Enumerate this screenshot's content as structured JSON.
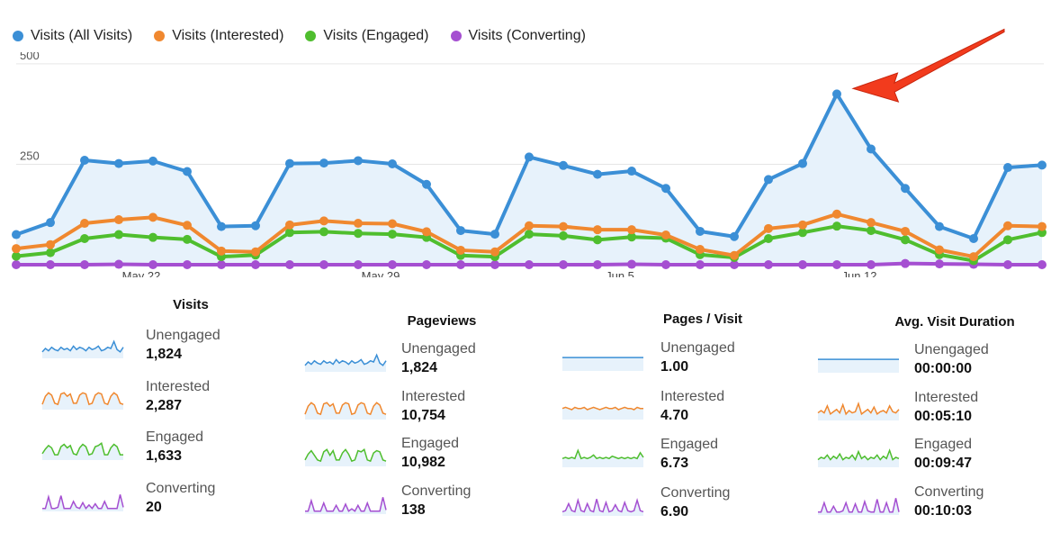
{
  "legend": [
    {
      "label": "Visits (All Visits)",
      "color": "#3b8fd6"
    },
    {
      "label": "Visits (Interested)",
      "color": "#f0882f"
    },
    {
      "label": "Visits (Engaged)",
      "color": "#4fbe2e"
    },
    {
      "label": "Visits (Converting)",
      "color": "#a54fd1"
    }
  ],
  "chart_data": {
    "type": "line",
    "x_tick_labels": [
      "May 22",
      "May 29",
      "Jun 5",
      "Jun 12"
    ],
    "y_tick_labels": [
      "500",
      "250"
    ],
    "ylim": [
      0,
      520
    ],
    "series": [
      {
        "name": "Visits (All Visits)",
        "color": "#3b8fd6",
        "values": [
          75,
          105,
          260,
          252,
          258,
          232,
          95,
          97,
          252,
          253,
          259,
          251,
          200,
          85,
          76,
          268,
          247,
          225,
          233,
          190,
          83,
          70,
          212,
          252,
          425,
          288,
          190,
          95,
          65,
          242,
          248
        ]
      },
      {
        "name": "Visits (Interested)",
        "color": "#f0882f",
        "values": [
          40,
          50,
          103,
          112,
          118,
          98,
          34,
          32,
          99,
          109,
          103,
          102,
          82,
          36,
          32,
          97,
          95,
          87,
          87,
          74,
          38,
          23,
          90,
          99,
          126,
          105,
          83,
          37,
          20,
          97,
          95
        ]
      },
      {
        "name": "Visits (Engaged)",
        "color": "#4fbe2e",
        "values": [
          21,
          30,
          65,
          75,
          68,
          63,
          20,
          24,
          80,
          82,
          78,
          76,
          68,
          23,
          20,
          76,
          72,
          62,
          69,
          66,
          25,
          18,
          65,
          80,
          96,
          85,
          62,
          25,
          10,
          62,
          80
        ]
      },
      {
        "name": "Visits (Converting)",
        "color": "#a54fd1",
        "values": [
          0,
          0,
          0,
          1,
          0,
          0,
          0,
          0,
          0,
          0,
          0,
          0,
          0,
          0,
          0,
          0,
          0,
          0,
          1,
          0,
          0,
          0,
          0,
          0,
          0,
          0,
          3,
          2,
          1,
          0,
          0
        ]
      }
    ]
  },
  "metrics": [
    {
      "title": "Visits",
      "spark_fill": false,
      "rows": [
        {
          "label": "Unengaged",
          "value": "1,824",
          "color": "#3b8fd6",
          "spark": [
            4,
            7,
            5,
            8,
            6,
            5,
            8,
            6,
            7,
            5,
            9,
            6,
            8,
            7,
            5,
            8,
            6,
            7,
            9,
            5,
            6,
            8,
            7,
            13,
            6,
            4,
            8
          ]
        },
        {
          "label": "Interested",
          "value": "2,287",
          "color": "#f0882f",
          "spark": [
            3,
            10,
            13,
            11,
            4,
            3,
            12,
            13,
            10,
            12,
            4,
            4,
            11,
            13,
            12,
            3,
            4,
            11,
            13,
            12,
            4,
            3,
            10,
            13,
            11,
            4,
            3
          ]
        },
        {
          "label": "Engaged",
          "value": "1,633",
          "color": "#4fbe2e",
          "spark": [
            4,
            8,
            11,
            9,
            3,
            3,
            10,
            12,
            9,
            11,
            4,
            3,
            9,
            12,
            10,
            3,
            4,
            10,
            11,
            13,
            3,
            3,
            9,
            12,
            10,
            3,
            3
          ]
        },
        {
          "label": "Converting",
          "value": "20",
          "color": "#a54fd1",
          "spark": [
            1,
            1,
            11,
            1,
            1,
            2,
            12,
            1,
            1,
            1,
            7,
            2,
            1,
            6,
            1,
            4,
            1,
            5,
            1,
            1,
            7,
            1,
            1,
            1,
            1,
            13,
            2
          ]
        }
      ]
    },
    {
      "title": "Pageviews",
      "spark_fill": false,
      "rows": [
        {
          "label": "Unengaged",
          "value": "1,824",
          "color": "#3b8fd6",
          "spark": [
            4,
            7,
            5,
            8,
            6,
            5,
            8,
            6,
            7,
            5,
            9,
            6,
            8,
            7,
            5,
            8,
            6,
            7,
            9,
            5,
            6,
            8,
            7,
            13,
            6,
            4,
            8
          ]
        },
        {
          "label": "Interested",
          "value": "10,754",
          "color": "#f0882f",
          "spark": [
            3,
            10,
            13,
            11,
            4,
            3,
            12,
            13,
            10,
            12,
            4,
            4,
            11,
            13,
            12,
            3,
            4,
            11,
            13,
            12,
            4,
            3,
            10,
            13,
            11,
            4,
            3
          ]
        },
        {
          "label": "Engaged",
          "value": "10,982",
          "color": "#4fbe2e",
          "spark": [
            4,
            9,
            12,
            8,
            4,
            3,
            11,
            13,
            8,
            12,
            4,
            4,
            10,
            13,
            9,
            3,
            4,
            12,
            11,
            13,
            4,
            3,
            10,
            12,
            11,
            4,
            3
          ]
        },
        {
          "label": "Converting",
          "value": "138",
          "color": "#a54fd1",
          "spark": [
            1,
            1,
            10,
            1,
            1,
            1,
            8,
            1,
            1,
            1,
            6,
            1,
            1,
            7,
            1,
            3,
            1,
            6,
            1,
            1,
            8,
            1,
            1,
            1,
            1,
            13,
            2
          ]
        }
      ]
    },
    {
      "title": "Pages / Visit",
      "spark_fill": true,
      "rows": [
        {
          "label": "Unengaged",
          "value": "1.00",
          "color": "#3b8fd6",
          "spark": [
            10,
            10,
            10,
            10,
            10,
            10,
            10,
            10,
            10,
            10,
            10,
            10,
            10,
            10,
            10,
            10,
            10,
            10,
            10,
            10,
            10,
            10,
            10,
            10,
            10,
            10,
            10
          ]
        },
        {
          "label": "Interested",
          "value": "4.70",
          "color": "#f0882f",
          "spark": [
            8,
            9,
            8,
            7,
            9,
            8,
            8,
            9,
            7,
            8,
            9,
            8,
            7,
            8,
            9,
            8,
            8,
            9,
            7,
            8,
            9,
            8,
            8,
            7,
            9,
            8,
            8
          ]
        },
        {
          "label": "Engaged",
          "value": "6.73",
          "color": "#4fbe2e",
          "spark": [
            6,
            7,
            6,
            7,
            6,
            13,
            6,
            7,
            6,
            7,
            9,
            6,
            7,
            6,
            7,
            6,
            8,
            7,
            6,
            7,
            6,
            7,
            6,
            7,
            6,
            11,
            7
          ]
        },
        {
          "label": "Converting",
          "value": "6.90",
          "color": "#a54fd1",
          "spark": [
            2,
            3,
            9,
            3,
            2,
            12,
            3,
            2,
            9,
            3,
            2,
            13,
            3,
            2,
            10,
            2,
            3,
            8,
            3,
            2,
            10,
            3,
            2,
            3,
            12,
            3,
            2
          ]
        }
      ]
    },
    {
      "title": "Avg. Visit Duration",
      "spark_fill": true,
      "rows": [
        {
          "label": "Unengaged",
          "value": "00:00:00",
          "color": "#3b8fd6",
          "spark": [
            10,
            10,
            10,
            10,
            10,
            10,
            10,
            10,
            10,
            10,
            10,
            10,
            10,
            10,
            10,
            10,
            10,
            10,
            10,
            10,
            10,
            10,
            10,
            10,
            10,
            10,
            10
          ]
        },
        {
          "label": "Interested",
          "value": "00:05:10",
          "color": "#f0882f",
          "spark": [
            5,
            7,
            5,
            11,
            4,
            6,
            8,
            5,
            12,
            4,
            7,
            5,
            6,
            13,
            4,
            6,
            8,
            5,
            10,
            4,
            6,
            7,
            5,
            11,
            6,
            5,
            8
          ]
        },
        {
          "label": "Engaged",
          "value": "00:09:47",
          "color": "#4fbe2e",
          "spark": [
            5,
            7,
            6,
            9,
            5,
            8,
            6,
            10,
            5,
            7,
            6,
            9,
            5,
            12,
            6,
            8,
            5,
            7,
            6,
            9,
            5,
            8,
            6,
            13,
            5,
            7,
            6
          ]
        },
        {
          "label": "Converting",
          "value": "00:10:03",
          "color": "#a54fd1",
          "spark": [
            1,
            1,
            9,
            1,
            1,
            6,
            1,
            1,
            2,
            9,
            1,
            1,
            8,
            1,
            1,
            10,
            2,
            1,
            1,
            12,
            1,
            1,
            9,
            1,
            1,
            13,
            1
          ]
        }
      ]
    }
  ]
}
